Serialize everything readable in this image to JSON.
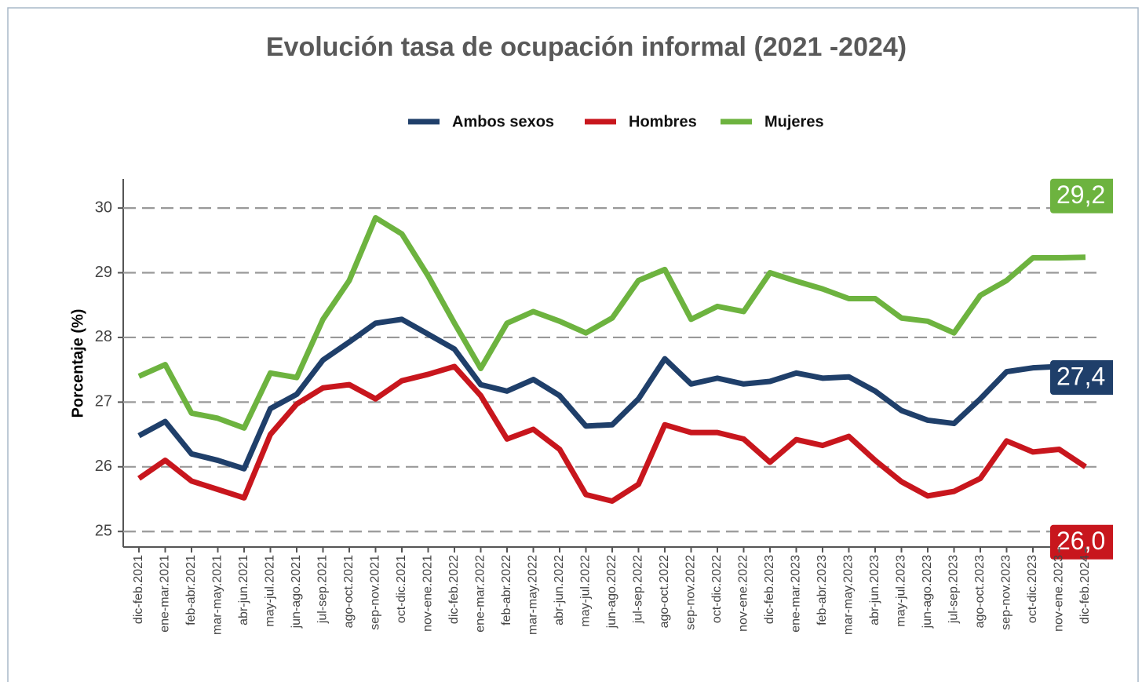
{
  "chart_data": {
    "type": "line",
    "title": "Evolución tasa de ocupación informal (2021 -2024)",
    "y_label": "Porcentaje (%)",
    "categories": [
      "dic-feb.2021",
      "ene-mar.2021",
      "feb-abr.2021",
      "mar-may.2021",
      "abr-jun.2021",
      "may-jul.2021",
      "jun-ago.2021",
      "jul-sep.2021",
      "ago-oct.2021",
      "sep-nov.2021",
      "oct-dic.2021",
      "nov-ene.2021",
      "dic-feb.2022",
      "ene-mar.2022",
      "feb-abr.2022",
      "mar-may.2022",
      "abr-jun.2022",
      "may-jul.2022",
      "jun-ago.2022",
      "jul-sep.2022",
      "ago-oct.2022",
      "sep-nov.2022",
      "oct-dic.2022",
      "nov-ene.2022",
      "dic-feb.2023",
      "ene-mar.2023",
      "feb-abr.2023",
      "mar-may.2023",
      "abr-jun.2023",
      "may-jul.2023",
      "jun-ago.2023",
      "jul-sep.2023",
      "ago-oct.2023",
      "sep-nov.2023",
      "oct-dic.2023",
      "nov-ene.2023",
      "dic-feb.2024"
    ],
    "series": [
      {
        "name": "Ambos sexos",
        "color": "#1f3f6a",
        "values": [
          26.48,
          26.7,
          26.2,
          26.1,
          25.97,
          26.9,
          27.12,
          27.65,
          27.93,
          28.22,
          28.28,
          28.05,
          27.82,
          27.27,
          27.17,
          27.35,
          27.1,
          26.63,
          26.65,
          27.05,
          27.67,
          27.28,
          27.37,
          27.28,
          27.32,
          27.45,
          27.37,
          27.39,
          27.17,
          26.87,
          26.72,
          26.67,
          27.05,
          27.47,
          27.53,
          27.55,
          27.38
        ],
        "value_labels": [
          null,
          null,
          null,
          null,
          null,
          null,
          null,
          null,
          null,
          null,
          null,
          null,
          null,
          null,
          null,
          null,
          null,
          null,
          null,
          null,
          null,
          null,
          null,
          null,
          null,
          null,
          null,
          null,
          null,
          null,
          null,
          null,
          null,
          null,
          null,
          null,
          "27,4"
        ]
      },
      {
        "name": "Hombres",
        "color": "#c8161d",
        "values": [
          25.82,
          26.1,
          25.78,
          25.65,
          25.52,
          26.5,
          26.97,
          27.22,
          27.27,
          27.05,
          27.33,
          27.43,
          27.55,
          27.1,
          26.43,
          26.58,
          26.27,
          25.57,
          25.47,
          25.73,
          26.65,
          26.53,
          26.53,
          26.43,
          26.07,
          26.42,
          26.33,
          26.47,
          26.1,
          25.77,
          25.55,
          25.62,
          25.82,
          26.4,
          26.23,
          26.27,
          26.0
        ],
        "value_labels": [
          null,
          null,
          null,
          null,
          null,
          null,
          null,
          null,
          null,
          null,
          null,
          null,
          null,
          null,
          null,
          null,
          null,
          null,
          null,
          null,
          null,
          null,
          null,
          null,
          null,
          null,
          null,
          null,
          null,
          null,
          null,
          null,
          null,
          null,
          null,
          null,
          "26,0"
        ]
      },
      {
        "name": "Mujeres",
        "color": "#6db33f",
        "values": [
          27.4,
          27.58,
          26.83,
          26.75,
          26.6,
          27.45,
          27.38,
          28.28,
          28.88,
          29.85,
          29.6,
          28.95,
          28.22,
          27.52,
          28.22,
          28.4,
          28.25,
          28.07,
          28.3,
          28.88,
          29.05,
          28.28,
          28.48,
          28.4,
          29.0,
          28.87,
          28.75,
          28.6,
          28.6,
          28.3,
          28.25,
          28.07,
          28.65,
          28.88,
          29.23,
          29.23,
          29.24
        ],
        "value_labels": [
          null,
          null,
          null,
          null,
          null,
          null,
          null,
          null,
          null,
          null,
          null,
          null,
          null,
          null,
          null,
          null,
          null,
          null,
          null,
          null,
          null,
          null,
          null,
          null,
          null,
          null,
          null,
          null,
          null,
          null,
          null,
          null,
          null,
          null,
          null,
          null,
          "29,2"
        ]
      }
    ],
    "ylim": [
      24.76,
      30.45
    ],
    "yticks": [
      25,
      26,
      27,
      28,
      29,
      30
    ],
    "grid": true,
    "legend": "top"
  }
}
